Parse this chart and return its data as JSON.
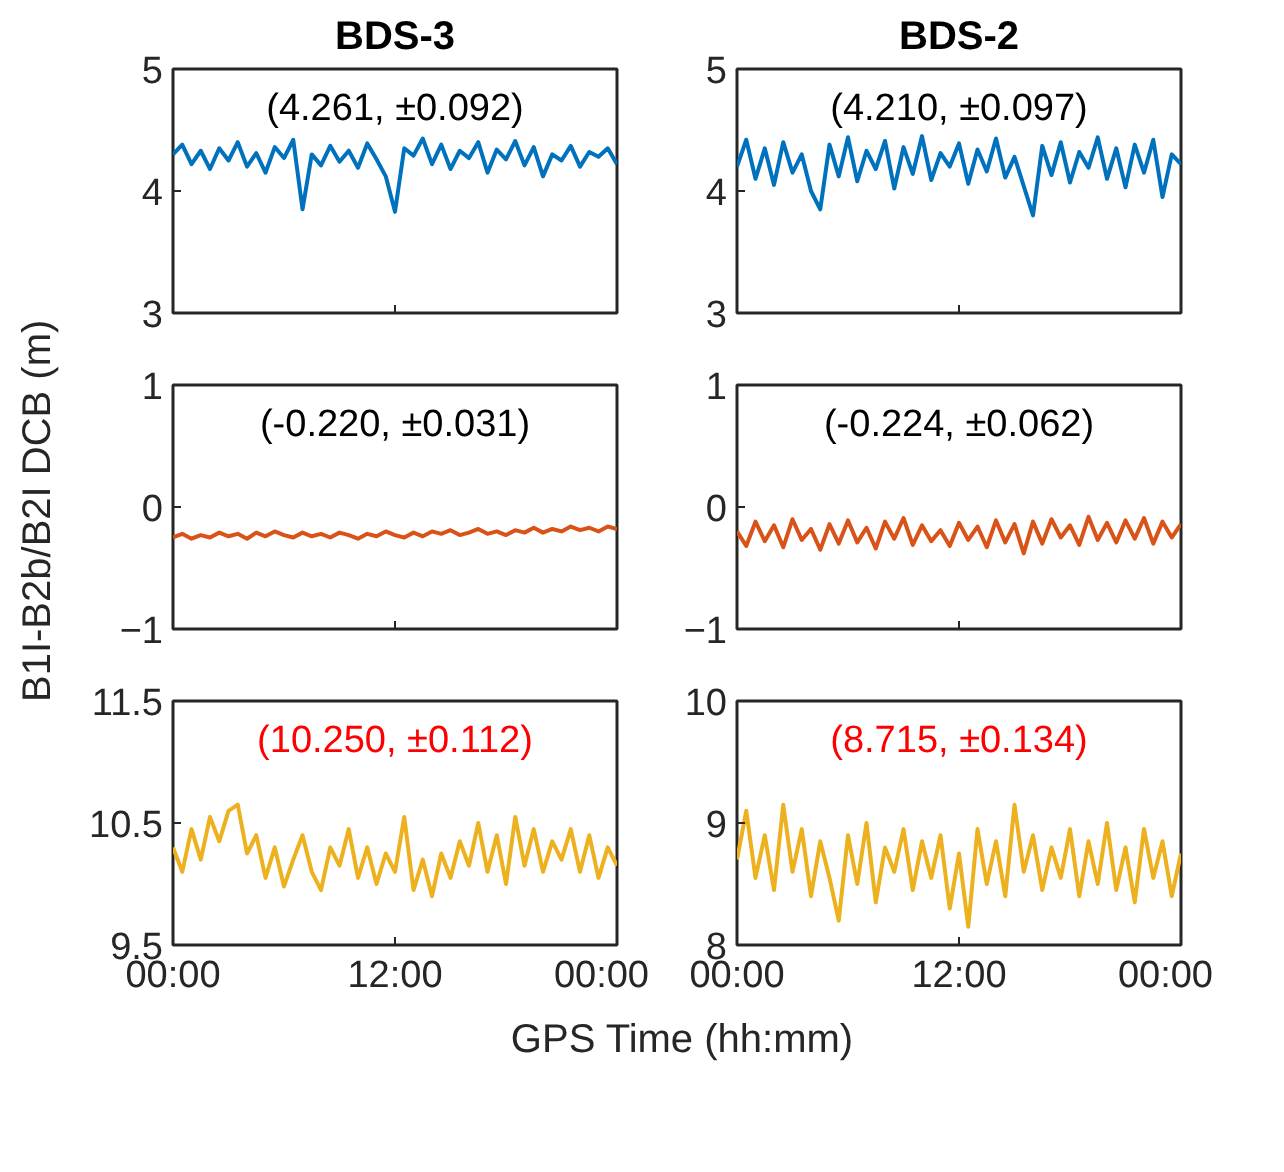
{
  "chart_data": [
    {
      "type": "line",
      "title": "BDS-3",
      "annotations": [
        "(4.261, ±0.092)"
      ],
      "xlim": [
        0,
        24
      ],
      "xticks": [
        0,
        12,
        24
      ],
      "ylim": [
        3,
        5
      ],
      "yticks": [
        3,
        4,
        5
      ],
      "tick_labels": "y",
      "x": [
        0,
        0.5,
        1,
        1.5,
        2,
        2.5,
        3,
        3.5,
        4,
        4.5,
        5,
        5.5,
        6,
        6.5,
        7,
        7.5,
        8,
        8.5,
        9,
        9.5,
        10,
        10.5,
        11,
        11.5,
        12,
        12.5,
        13,
        13.5,
        14,
        14.5,
        15,
        15.5,
        16,
        16.5,
        17,
        17.5,
        18,
        18.5,
        19,
        19.5,
        20,
        20.5,
        21,
        21.5,
        22,
        22.5,
        23,
        23.5,
        24
      ],
      "series": [
        {
          "color": "#0072bd",
          "values": [
            4.3,
            4.38,
            4.22,
            4.33,
            4.18,
            4.35,
            4.25,
            4.4,
            4.2,
            4.31,
            4.15,
            4.36,
            4.27,
            4.42,
            3.85,
            4.3,
            4.21,
            4.37,
            4.24,
            4.33,
            4.19,
            4.39,
            4.26,
            4.12,
            3.83,
            4.35,
            4.29,
            4.43,
            4.22,
            4.38,
            4.18,
            4.33,
            4.27,
            4.4,
            4.15,
            4.34,
            4.26,
            4.41,
            4.21,
            4.36,
            4.12,
            4.3,
            4.25,
            4.37,
            4.2,
            4.32,
            4.28,
            4.35,
            4.22
          ]
        }
      ]
    },
    {
      "type": "line",
      "title": "BDS-2",
      "annotations": [
        "(4.210, ±0.097)"
      ],
      "xlim": [
        0,
        24
      ],
      "xticks": [
        0,
        12,
        24
      ],
      "ylim": [
        3,
        5
      ],
      "yticks": [
        3,
        4,
        5
      ],
      "tick_labels": "y",
      "x": [
        0,
        0.5,
        1,
        1.5,
        2,
        2.5,
        3,
        3.5,
        4,
        4.5,
        5,
        5.5,
        6,
        6.5,
        7,
        7.5,
        8,
        8.5,
        9,
        9.5,
        10,
        10.5,
        11,
        11.5,
        12,
        12.5,
        13,
        13.5,
        14,
        14.5,
        15,
        15.5,
        16,
        16.5,
        17,
        17.5,
        18,
        18.5,
        19,
        19.5,
        20,
        20.5,
        21,
        21.5,
        22,
        22.5,
        23,
        23.5,
        24
      ],
      "series": [
        {
          "color": "#0072bd",
          "values": [
            4.2,
            4.42,
            4.1,
            4.35,
            4.05,
            4.4,
            4.15,
            4.3,
            4.0,
            3.85,
            4.38,
            4.12,
            4.44,
            4.08,
            4.33,
            4.18,
            4.41,
            4.02,
            4.36,
            4.14,
            4.45,
            4.09,
            4.31,
            4.2,
            4.39,
            4.06,
            4.34,
            4.16,
            4.43,
            4.11,
            4.28,
            4.04,
            3.8,
            4.37,
            4.13,
            4.4,
            4.07,
            4.32,
            4.19,
            4.44,
            4.1,
            4.35,
            4.03,
            4.38,
            4.15,
            4.42,
            3.95,
            4.3,
            4.22
          ]
        }
      ]
    },
    {
      "type": "line",
      "ylabel": "B1I-B2b/B2I DCB (m)",
      "annotations": [
        "(-0.220, ±0.031)"
      ],
      "xlim": [
        0,
        24
      ],
      "xticks": [
        0,
        12,
        24
      ],
      "ylim": [
        -1,
        1
      ],
      "yticks": [
        -1,
        0,
        1
      ],
      "tick_labels": "y",
      "x": [
        0,
        0.5,
        1,
        1.5,
        2,
        2.5,
        3,
        3.5,
        4,
        4.5,
        5,
        5.5,
        6,
        6.5,
        7,
        7.5,
        8,
        8.5,
        9,
        9.5,
        10,
        10.5,
        11,
        11.5,
        12,
        12.5,
        13,
        13.5,
        14,
        14.5,
        15,
        15.5,
        16,
        16.5,
        17,
        17.5,
        18,
        18.5,
        19,
        19.5,
        20,
        20.5,
        21,
        21.5,
        22,
        22.5,
        23,
        23.5,
        24
      ],
      "series": [
        {
          "color": "#d95319",
          "values": [
            -0.25,
            -0.22,
            -0.26,
            -0.23,
            -0.25,
            -0.21,
            -0.24,
            -0.22,
            -0.26,
            -0.21,
            -0.24,
            -0.2,
            -0.23,
            -0.25,
            -0.21,
            -0.24,
            -0.22,
            -0.25,
            -0.21,
            -0.23,
            -0.26,
            -0.22,
            -0.24,
            -0.2,
            -0.23,
            -0.25,
            -0.21,
            -0.24,
            -0.2,
            -0.22,
            -0.19,
            -0.23,
            -0.21,
            -0.18,
            -0.22,
            -0.2,
            -0.23,
            -0.19,
            -0.21,
            -0.17,
            -0.21,
            -0.18,
            -0.2,
            -0.16,
            -0.19,
            -0.17,
            -0.2,
            -0.16,
            -0.18
          ]
        }
      ]
    },
    {
      "type": "line",
      "annotations": [
        "(-0.224, ±0.062)"
      ],
      "xlim": [
        0,
        24
      ],
      "xticks": [
        0,
        12,
        24
      ],
      "ylim": [
        -1,
        1
      ],
      "yticks": [
        -1,
        0,
        1
      ],
      "tick_labels": "y",
      "x": [
        0,
        0.5,
        1,
        1.5,
        2,
        2.5,
        3,
        3.5,
        4,
        4.5,
        5,
        5.5,
        6,
        6.5,
        7,
        7.5,
        8,
        8.5,
        9,
        9.5,
        10,
        10.5,
        11,
        11.5,
        12,
        12.5,
        13,
        13.5,
        14,
        14.5,
        15,
        15.5,
        16,
        16.5,
        17,
        17.5,
        18,
        18.5,
        19,
        19.5,
        20,
        20.5,
        21,
        21.5,
        22,
        22.5,
        23,
        23.5,
        24
      ],
      "series": [
        {
          "color": "#d95319",
          "values": [
            -0.2,
            -0.32,
            -0.12,
            -0.28,
            -0.15,
            -0.33,
            -0.1,
            -0.27,
            -0.18,
            -0.35,
            -0.14,
            -0.3,
            -0.11,
            -0.29,
            -0.17,
            -0.34,
            -0.12,
            -0.26,
            -0.09,
            -0.31,
            -0.15,
            -0.28,
            -0.19,
            -0.32,
            -0.13,
            -0.27,
            -0.16,
            -0.33,
            -0.11,
            -0.29,
            -0.14,
            -0.38,
            -0.12,
            -0.3,
            -0.1,
            -0.25,
            -0.15,
            -0.31,
            -0.08,
            -0.27,
            -0.13,
            -0.29,
            -0.11,
            -0.26,
            -0.09,
            -0.3,
            -0.12,
            -0.25,
            -0.14
          ]
        }
      ]
    },
    {
      "type": "line",
      "xlabel": "GPS Time (hh:mm)",
      "annotations": [
        "(10.250, ±0.112)"
      ],
      "xlim": [
        0,
        24
      ],
      "xticks": [
        {
          "value": 0,
          "label": "00:00"
        },
        {
          "value": 12,
          "label": "12:00"
        },
        {
          "value": 24,
          "label": "00:00"
        }
      ],
      "ylim": [
        9.5,
        11.5
      ],
      "yticks": [
        9.5,
        10.5,
        11.5
      ],
      "x": [
        0,
        0.5,
        1,
        1.5,
        2,
        2.5,
        3,
        3.5,
        4,
        4.5,
        5,
        5.5,
        6,
        6.5,
        7,
        7.5,
        8,
        8.5,
        9,
        9.5,
        10,
        10.5,
        11,
        11.5,
        12,
        12.5,
        13,
        13.5,
        14,
        14.5,
        15,
        15.5,
        16,
        16.5,
        17,
        17.5,
        18,
        18.5,
        19,
        19.5,
        20,
        20.5,
        21,
        21.5,
        22,
        22.5,
        23,
        23.5,
        24
      ],
      "series": [
        {
          "color": "#edb120",
          "values": [
            10.3,
            10.1,
            10.45,
            10.2,
            10.55,
            10.35,
            10.6,
            10.65,
            10.25,
            10.4,
            10.05,
            10.3,
            9.98,
            10.2,
            10.4,
            10.1,
            9.95,
            10.3,
            10.15,
            10.45,
            10.05,
            10.3,
            10.0,
            10.25,
            10.1,
            10.55,
            9.95,
            10.2,
            9.9,
            10.25,
            10.05,
            10.35,
            10.15,
            10.5,
            10.1,
            10.4,
            10.0,
            10.55,
            10.15,
            10.45,
            10.1,
            10.35,
            10.2,
            10.45,
            10.1,
            10.4,
            10.05,
            10.3,
            10.15
          ]
        }
      ]
    },
    {
      "type": "line",
      "annotations": [
        "(8.715, ±0.134)"
      ],
      "xlim": [
        0,
        24
      ],
      "xticks": [
        {
          "value": 0,
          "label": "00:00"
        },
        {
          "value": 12,
          "label": "12:00"
        },
        {
          "value": 24,
          "label": "00:00"
        }
      ],
      "ylim": [
        8,
        10
      ],
      "yticks": [
        8,
        9,
        10
      ],
      "x": [
        0,
        0.5,
        1,
        1.5,
        2,
        2.5,
        3,
        3.5,
        4,
        4.5,
        5,
        5.5,
        6,
        6.5,
        7,
        7.5,
        8,
        8.5,
        9,
        9.5,
        10,
        10.5,
        11,
        11.5,
        12,
        12.5,
        13,
        13.5,
        14,
        14.5,
        15,
        15.5,
        16,
        16.5,
        17,
        17.5,
        18,
        18.5,
        19,
        19.5,
        20,
        20.5,
        21,
        21.5,
        22,
        22.5,
        23,
        23.5,
        24
      ],
      "series": [
        {
          "color": "#edb120",
          "values": [
            8.7,
            9.1,
            8.55,
            8.9,
            8.45,
            9.15,
            8.6,
            8.95,
            8.4,
            8.85,
            8.55,
            8.2,
            8.9,
            8.5,
            9.0,
            8.35,
            8.8,
            8.6,
            8.95,
            8.45,
            8.85,
            8.55,
            8.9,
            8.3,
            8.75,
            8.15,
            8.95,
            8.5,
            8.85,
            8.4,
            9.15,
            8.6,
            8.9,
            8.45,
            8.8,
            8.55,
            8.95,
            8.4,
            8.85,
            8.5,
            9.0,
            8.45,
            8.8,
            8.35,
            8.95,
            8.55,
            8.85,
            8.4,
            8.75
          ]
        }
      ]
    }
  ]
}
